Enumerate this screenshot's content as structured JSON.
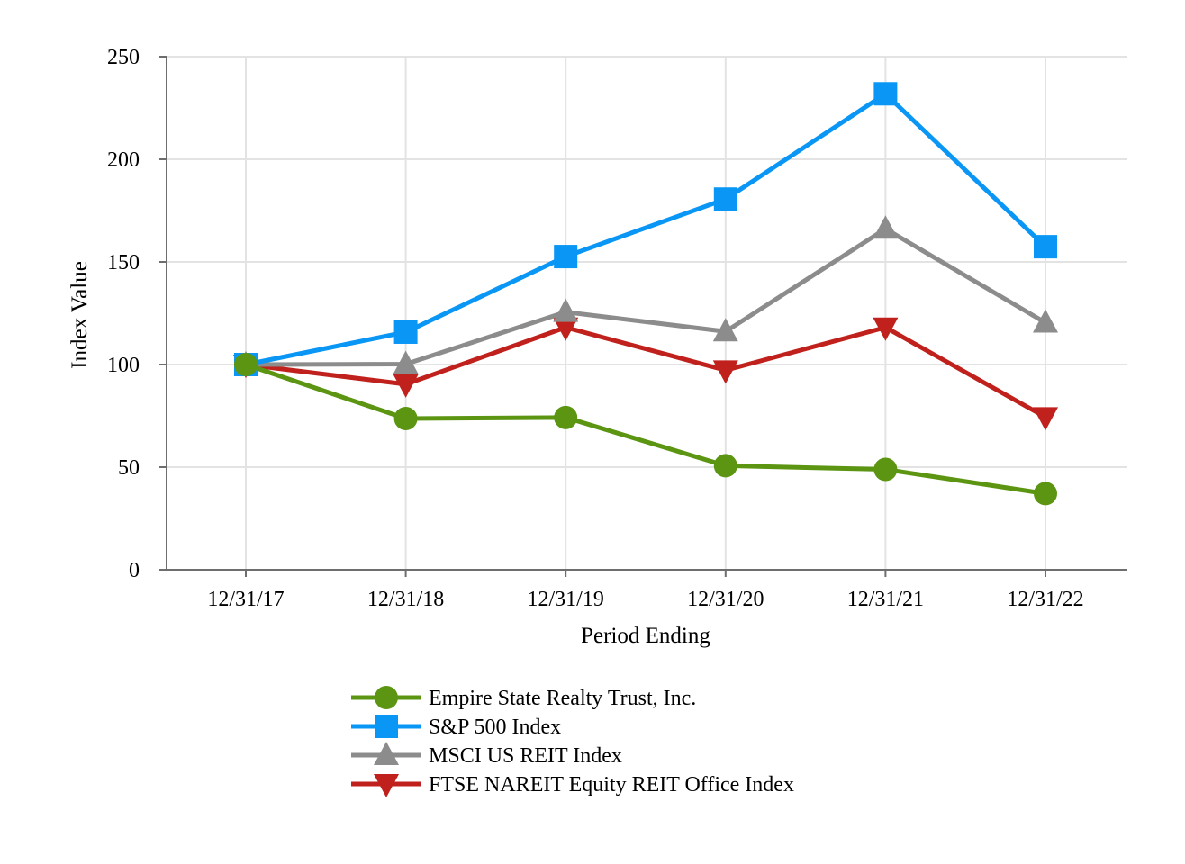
{
  "chart_data": {
    "type": "line",
    "title": "",
    "xlabel": "Period Ending",
    "ylabel": "Index Value",
    "categories": [
      "12/31/17",
      "12/31/18",
      "12/31/19",
      "12/31/20",
      "12/31/21",
      "12/31/22"
    ],
    "ylim": [
      0,
      250
    ],
    "yticks": [
      0,
      50,
      100,
      150,
      200,
      250
    ],
    "grid": true,
    "legend_position": "bottom",
    "series": [
      {
        "name": "Empire State Realty Trust, Inc.",
        "values": [
          100,
          73.7,
          74.2,
          50.7,
          48.9,
          37.1
        ],
        "color": "#5b9512",
        "marker": "circle"
      },
      {
        "name": "S&P 500 Index",
        "values": [
          100,
          115.8,
          152.6,
          180.6,
          231.9,
          157.4
        ],
        "color": "#0a96f5",
        "marker": "square"
      },
      {
        "name": "MSCI US REIT Index",
        "values": [
          100,
          100.2,
          125.6,
          116.1,
          166.1,
          120.4
        ],
        "color": "#8c8c8c",
        "marker": "triangle-up"
      },
      {
        "name": "FTSE NAREIT Equity REIT Office Index",
        "values": [
          100,
          90.4,
          118.1,
          97.2,
          118.1,
          74.4
        ],
        "color": "#c0211c",
        "marker": "triangle-down"
      }
    ]
  }
}
